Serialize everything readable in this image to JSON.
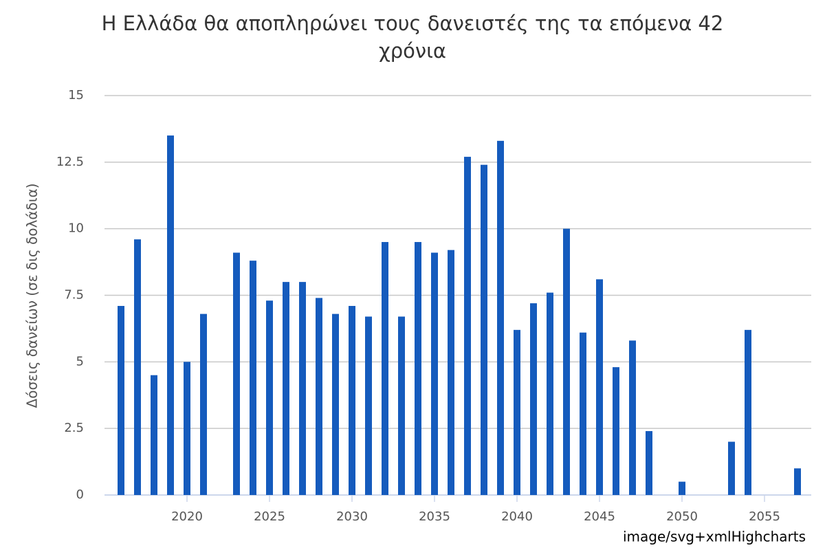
{
  "chart_data": {
    "type": "bar",
    "title": "Η Ελλάδα θα αποπληρώνει τους δανειστές της τα επόμενα 42 χρόνια",
    "y_label": "Δόσεις δανείων (σε δις δολάδια)",
    "credits": "image/svg+xmlHighcharts",
    "x": [
      2016,
      2017,
      2018,
      2019,
      2020,
      2021,
      2023,
      2024,
      2025,
      2026,
      2027,
      2028,
      2029,
      2030,
      2031,
      2032,
      2033,
      2034,
      2035,
      2036,
      2037,
      2038,
      2039,
      2040,
      2041,
      2042,
      2043,
      2044,
      2045,
      2046,
      2047,
      2048,
      2050,
      2053,
      2054,
      2057
    ],
    "values": [
      7.1,
      9.6,
      4.5,
      13.5,
      5.0,
      6.8,
      9.1,
      8.8,
      7.3,
      8.0,
      8.0,
      7.4,
      6.8,
      7.1,
      6.7,
      9.5,
      6.7,
      9.5,
      9.1,
      9.2,
      12.7,
      12.4,
      13.3,
      6.2,
      7.2,
      7.6,
      10.0,
      6.1,
      8.1,
      4.8,
      5.8,
      2.4,
      0.5,
      2.0,
      6.2,
      1.0
    ],
    "color": "#155bbd",
    "xlim": [
      2015,
      2058
    ],
    "xticks": [
      2020,
      2025,
      2030,
      2035,
      2040,
      2045,
      2050,
      2055
    ],
    "ylim": [
      0,
      15
    ],
    "yticks": [
      0,
      2.5,
      5,
      7.5,
      10,
      12.5,
      15
    ],
    "grid": true
  }
}
